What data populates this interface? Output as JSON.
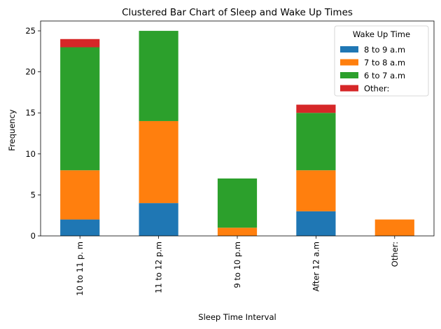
{
  "chart_data": {
    "type": "bar",
    "stacked": true,
    "title": "Clustered Bar Chart of Sleep and Wake Up Times",
    "xlabel": "Sleep Time Interval",
    "ylabel": "Frequency",
    "categories": [
      "10 to 11 p. m",
      "11 to 12 p.m",
      "9 to 10 p.m",
      "After 12 a.m",
      "Other:"
    ],
    "ylim": [
      0,
      26.2
    ],
    "yticks": [
      0,
      5,
      10,
      15,
      20,
      25
    ],
    "legend": {
      "title": "Wake Up Time",
      "position": "top-right"
    },
    "series": [
      {
        "name": "8 to 9 a.m",
        "color": "#1f77b4",
        "values": [
          2,
          4,
          0,
          3,
          0
        ]
      },
      {
        "name": "7 to 8 a.m",
        "color": "#ff7f0e",
        "values": [
          6,
          10,
          1,
          5,
          2
        ]
      },
      {
        "name": "6 to 7 a.m",
        "color": "#2ca02c",
        "values": [
          15,
          11,
          6,
          7,
          0
        ]
      },
      {
        "name": "Other:",
        "color": "#d62728",
        "values": [
          1,
          0,
          0,
          1,
          0
        ]
      }
    ]
  }
}
